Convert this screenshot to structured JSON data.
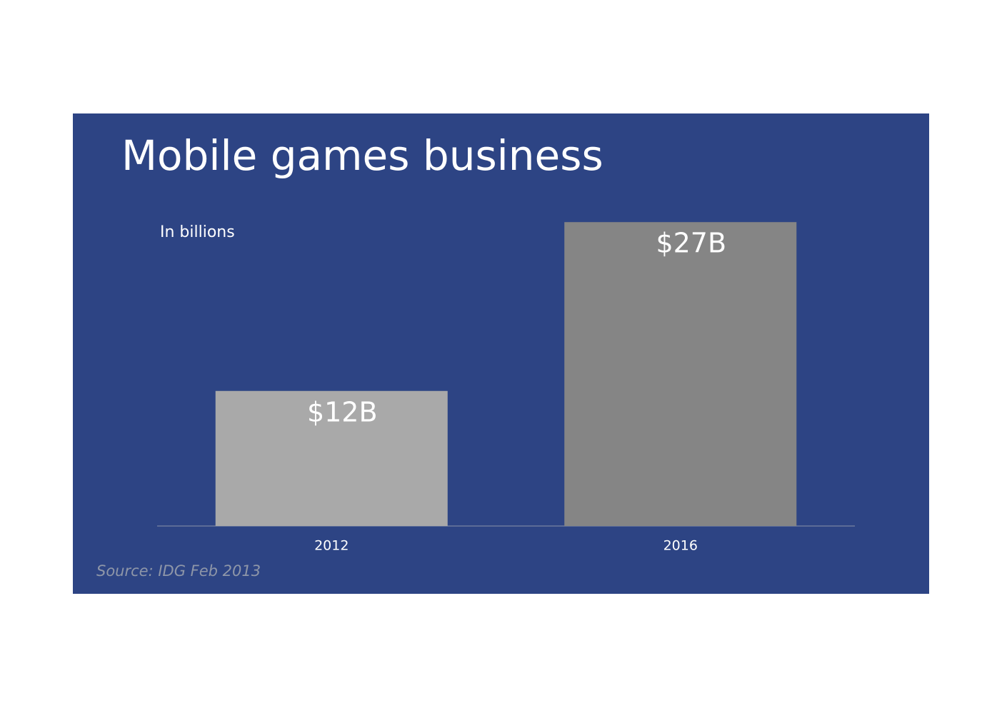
{
  "chart_data": {
    "type": "bar",
    "title": "Mobile games business",
    "subtitle": "In billions",
    "source": "Source: IDG Feb 2013",
    "categories": [
      "2012",
      "2016"
    ],
    "values": [
      12,
      27
    ],
    "value_labels": [
      "$12B",
      "$27B"
    ],
    "colors": [
      "#a9a9a9",
      "#858585"
    ]
  }
}
